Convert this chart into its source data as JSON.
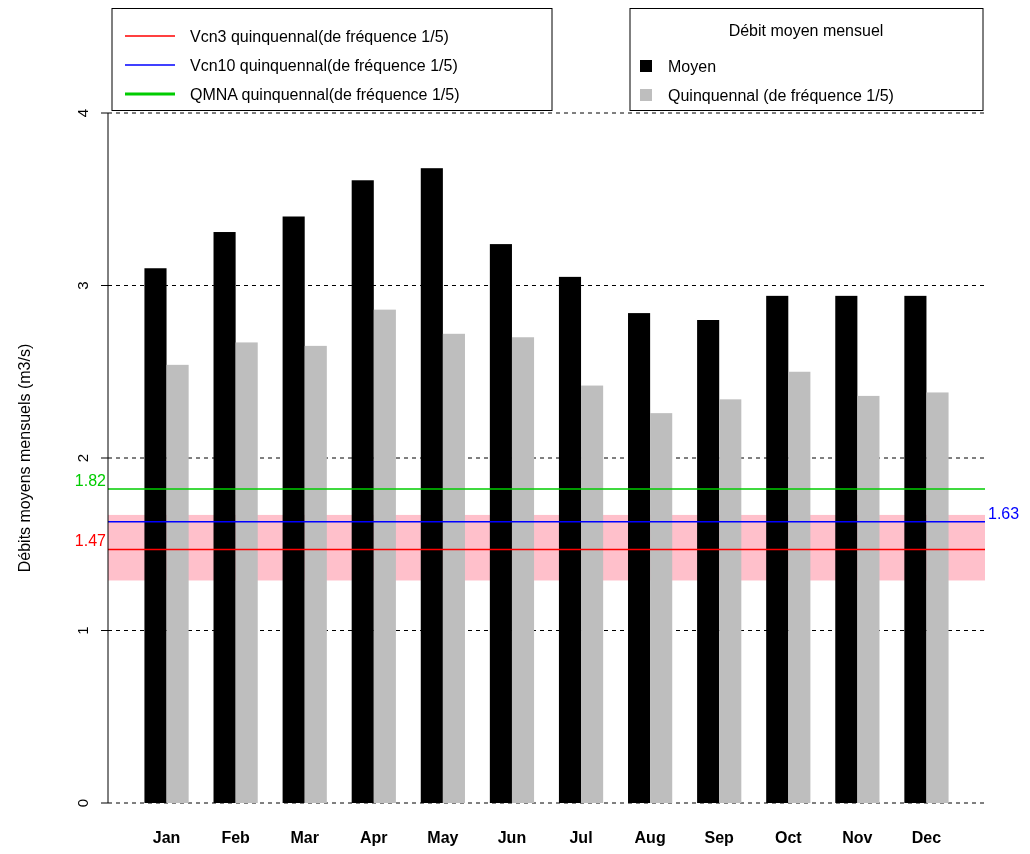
{
  "chart_data": {
    "type": "bar",
    "ylabel": "Débits moyens mensuels (m3/s)",
    "legend_title": "Débit moyen mensuel",
    "legend": "top",
    "categories": [
      "Jan",
      "Feb",
      "Mar",
      "Apr",
      "May",
      "Jun",
      "Jul",
      "Aug",
      "Sep",
      "Oct",
      "Nov",
      "Dec"
    ],
    "series": [
      {
        "name": "Moyen",
        "color": "#000000",
        "values": [
          3.1,
          3.31,
          3.4,
          3.61,
          3.68,
          3.24,
          3.05,
          2.84,
          2.8,
          2.94,
          2.94,
          2.94
        ]
      },
      {
        "name": "Quinquennal (de fréquence 1/5)",
        "color": "#bebebe",
        "values": [
          2.54,
          2.67,
          2.65,
          2.86,
          2.72,
          2.7,
          2.42,
          2.26,
          2.34,
          2.5,
          2.36,
          2.38
        ]
      }
    ],
    "ylim": [
      0,
      4
    ],
    "yticks": [
      0,
      1,
      2,
      3,
      4
    ],
    "grid": "y",
    "annotations": [
      "1.47",
      "1.63",
      "1.82"
    ],
    "bands": [
      {
        "axis": "y",
        "from": 1.29,
        "to": 1.67,
        "color": "#ffc0cb"
      }
    ],
    "ref_lines": [
      {
        "axis": "y",
        "value": 1.47,
        "label": "Vcn3 quinquennal(de fréquence 1/5)",
        "color": "#ff0000"
      },
      {
        "axis": "y",
        "value": 1.63,
        "label": "Vcn10 quinquennal(de fréquence 1/5)",
        "color": "#0000ff"
      },
      {
        "axis": "y",
        "value": 1.82,
        "label": "QMNA quinquennal(de fréquence 1/5)",
        "color": "#00cc00"
      }
    ]
  }
}
